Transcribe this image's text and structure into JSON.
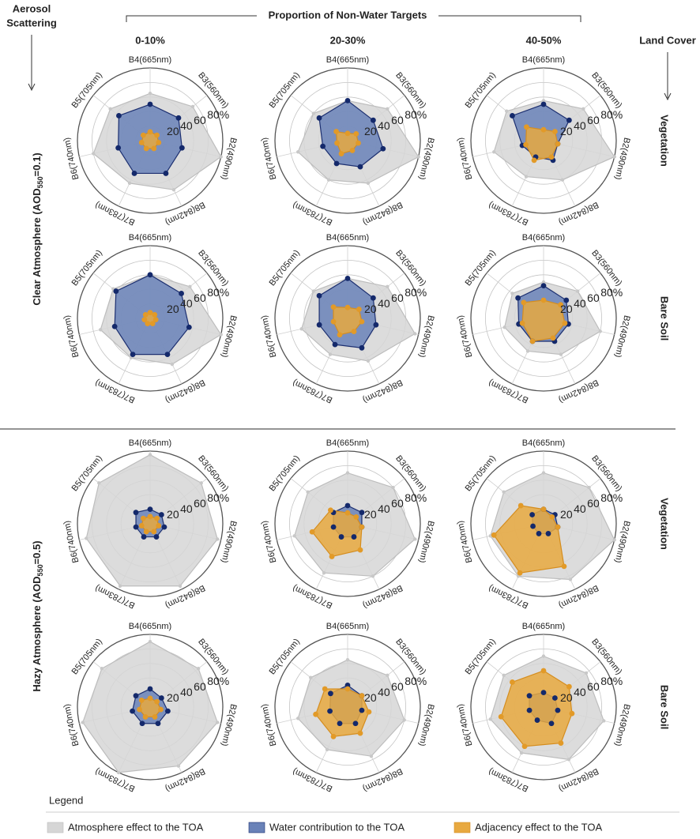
{
  "header": {
    "row_axis_title": [
      "Aerosol",
      "Scattering"
    ],
    "col_axis_title": "Proportion of Non-Water Targets",
    "right_axis_title": "Land Cover",
    "columns": [
      "0-10%",
      "20-30%",
      "40-50%"
    ]
  },
  "rows": [
    {
      "group": [
        "Clear Atmosphere (AOD",
        "550",
        "=0.1)"
      ],
      "land_covers": [
        "Vegetation",
        "Bare Soil"
      ]
    },
    {
      "group": [
        "Hazy Atmosphere (AOD",
        "550",
        "=0.5)"
      ],
      "land_covers": [
        "Vegetation",
        "Bare Soil"
      ]
    }
  ],
  "legend": {
    "title": "Legend",
    "items": [
      {
        "name": "Atmosphere effect to the TOA",
        "color": "#d6d6d6"
      },
      {
        "name": "Water contribution to the TOA",
        "color": "#6a82b8"
      },
      {
        "name": "Adjacency effect to the TOA",
        "color": "#e8a940"
      }
    ]
  },
  "chart_data": [
    {
      "type": "radar",
      "categories": [
        "B2(490nm)",
        "B3(560nm)",
        "B4(665nm)",
        "B5(705nm)",
        "B6(740nm)",
        "B7(783nm)",
        "B8(842nm)"
      ],
      "rlim": [
        0,
        100
      ],
      "rticks": [
        20,
        40,
        60,
        {
          "value": 80,
          "label": "80%"
        }
      ],
      "series": [
        {
          "values": [
            100,
            75,
            65,
            70,
            80,
            65,
            75
          ]
        },
        {
          "values": [
            45,
            50,
            50,
            55,
            45,
            50,
            50
          ]
        },
        {
          "values": [
            12,
            12,
            12,
            12,
            12,
            12,
            12
          ]
        }
      ]
    },
    {
      "type": "radar",
      "categories": [
        "B2(490nm)",
        "B3(560nm)",
        "B4(665nm)",
        "B5(705nm)",
        "B6(740nm)",
        "B7(783nm)",
        "B8(842nm)"
      ],
      "rlim": [
        0,
        100
      ],
      "rticks": [
        20,
        40,
        60,
        {
          "value": 80,
          "label": "80%"
        }
      ],
      "series": [
        {
          "values": [
            100,
            70,
            55,
            60,
            70,
            60,
            65
          ]
        },
        {
          "values": [
            50,
            45,
            55,
            50,
            35,
            35,
            40
          ]
        },
        {
          "values": [
            15,
            15,
            10,
            20,
            15,
            20,
            15
          ]
        }
      ]
    },
    {
      "type": "radar",
      "categories": [
        "B2(490nm)",
        "B3(560nm)",
        "B4(665nm)",
        "B5(705nm)",
        "B6(740nm)",
        "B7(783nm)",
        "B8(842nm)"
      ],
      "rlim": [
        0,
        100
      ],
      "rticks": [
        20,
        40,
        60,
        {
          "value": 80,
          "label": "80%"
        }
      ],
      "series": [
        {
          "values": [
            100,
            70,
            55,
            65,
            70,
            55,
            60
          ]
        },
        {
          "values": [
            20,
            45,
            50,
            55,
            30,
            25,
            30
          ]
        },
        {
          "values": [
            20,
            20,
            15,
            30,
            25,
            30,
            25
          ]
        }
      ]
    },
    {
      "type": "radar",
      "categories": [
        "B2(490nm)",
        "B3(560nm)",
        "B4(665nm)",
        "B5(705nm)",
        "B6(740nm)",
        "B7(783nm)",
        "B8(842nm)"
      ],
      "rlim": [
        0,
        100
      ],
      "rticks": [
        20,
        40,
        60,
        {
          "value": 80,
          "label": "80%"
        }
      ],
      "series": [
        {
          "values": [
            100,
            70,
            60,
            65,
            70,
            60,
            70
          ]
        },
        {
          "values": [
            55,
            55,
            60,
            60,
            50,
            55,
            55
          ]
        },
        {
          "values": [
            8,
            8,
            8,
            8,
            8,
            8,
            8
          ]
        }
      ]
    },
    {
      "type": "radar",
      "categories": [
        "B2(490nm)",
        "B3(560nm)",
        "B4(665nm)",
        "B5(705nm)",
        "B6(740nm)",
        "B7(783nm)",
        "B8(842nm)"
      ],
      "rlim": [
        0,
        100
      ],
      "rticks": [
        20,
        40,
        60,
        {
          "value": 80,
          "label": "80%"
        }
      ],
      "series": [
        {
          "values": [
            95,
            70,
            55,
            60,
            65,
            55,
            65
          ]
        },
        {
          "values": [
            40,
            45,
            55,
            50,
            40,
            40,
            45
          ]
        },
        {
          "values": [
            20,
            20,
            15,
            25,
            20,
            25,
            20
          ]
        }
      ]
    },
    {
      "type": "radar",
      "categories": [
        "B2(490nm)",
        "B3(560nm)",
        "B4(665nm)",
        "B5(705nm)",
        "B6(740nm)",
        "B7(783nm)",
        "B8(842nm)"
      ],
      "rlim": [
        0,
        100
      ],
      "rticks": [
        20,
        40,
        60,
        {
          "value": 80,
          "label": "80%"
        }
      ],
      "series": [
        {
          "values": [
            80,
            60,
            50,
            55,
            55,
            50,
            55
          ]
        },
        {
          "values": [
            35,
            40,
            45,
            45,
            35,
            35,
            35
          ]
        },
        {
          "values": [
            30,
            30,
            25,
            35,
            30,
            35,
            30
          ]
        }
      ]
    },
    {
      "type": "radar",
      "categories": [
        "B2(490nm)",
        "B3(560nm)",
        "B4(665nm)",
        "B5(705nm)",
        "B6(740nm)",
        "B7(783nm)",
        "B8(842nm)"
      ],
      "rlim": [
        0,
        100
      ],
      "rticks": [
        20,
        40,
        60,
        {
          "value": 80,
          "label": "80%"
        }
      ],
      "series": [
        {
          "values": [
            95,
            90,
            95,
            90,
            90,
            95,
            95
          ]
        },
        {
          "values": [
            20,
            20,
            20,
            25,
            20,
            20,
            20
          ]
        },
        {
          "values": [
            12,
            12,
            10,
            12,
            12,
            12,
            12
          ]
        }
      ]
    },
    {
      "type": "radar",
      "categories": [
        "B2(490nm)",
        "B3(560nm)",
        "B4(665nm)",
        "B5(705nm)",
        "B6(740nm)",
        "B7(783nm)",
        "B8(842nm)"
      ],
      "rlim": [
        0,
        100
      ],
      "rticks": [
        20,
        40,
        60,
        {
          "value": 80,
          "label": "80%"
        }
      ],
      "series": [
        {
          "values": [
            95,
            80,
            70,
            70,
            75,
            75,
            80
          ]
        },
        {
          "values": [
            20,
            25,
            25,
            25,
            20,
            20,
            20
          ]
        },
        {
          "values": [
            20,
            15,
            15,
            30,
            50,
            50,
            40
          ]
        }
      ]
    },
    {
      "type": "radar",
      "categories": [
        "B2(490nm)",
        "B3(560nm)",
        "B4(665nm)",
        "B5(705nm)",
        "B6(740nm)",
        "B7(783nm)",
        "B8(842nm)"
      ],
      "rlim": [
        0,
        100
      ],
      "rticks": [
        20,
        40,
        60,
        {
          "value": 80,
          "label": "80%"
        }
      ],
      "series": [
        {
          "values": [
            100,
            80,
            70,
            70,
            75,
            80,
            85
          ]
        },
        {
          "values": [
            20,
            20,
            20,
            20,
            15,
            15,
            15
          ]
        },
        {
          "values": [
            20,
            15,
            20,
            40,
            70,
            75,
            65
          ]
        }
      ]
    },
    {
      "type": "radar",
      "categories": [
        "B2(490nm)",
        "B3(560nm)",
        "B4(665nm)",
        "B5(705nm)",
        "B6(740nm)",
        "B7(783nm)",
        "B8(842nm)"
      ],
      "rlim": [
        0,
        100
      ],
      "rticks": [
        20,
        40,
        60,
        {
          "value": 80,
          "label": "80%"
        }
      ],
      "series": [
        {
          "values": [
            95,
            85,
            90,
            85,
            95,
            100,
            90
          ]
        },
        {
          "values": [
            25,
            20,
            25,
            25,
            25,
            25,
            25
          ]
        },
        {
          "values": [
            15,
            12,
            12,
            15,
            15,
            15,
            15
          ]
        }
      ]
    },
    {
      "type": "radar",
      "categories": [
        "B2(490nm)",
        "B3(560nm)",
        "B4(665nm)",
        "B5(705nm)",
        "B6(740nm)",
        "B7(783nm)",
        "B8(842nm)"
      ],
      "rlim": [
        0,
        100
      ],
      "rticks": [
        20,
        40,
        60,
        {
          "value": 80,
          "label": "80%"
        }
      ],
      "series": [
        {
          "values": [
            80,
            70,
            65,
            65,
            70,
            65,
            75
          ]
        },
        {
          "values": [
            20,
            25,
            30,
            30,
            25,
            25,
            25
          ]
        },
        {
          "values": [
            30,
            25,
            25,
            40,
            45,
            45,
            40
          ]
        }
      ]
    },
    {
      "type": "radar",
      "categories": [
        "B2(490nm)",
        "B3(560nm)",
        "B4(665nm)",
        "B5(705nm)",
        "B6(740nm)",
        "B7(783nm)",
        "B8(842nm)"
      ],
      "rlim": [
        0,
        100
      ],
      "rticks": [
        20,
        40,
        60,
        {
          "value": 80,
          "label": "80%"
        }
      ],
      "series": [
        {
          "values": [
            85,
            75,
            70,
            70,
            75,
            70,
            80
          ]
        },
        {
          "values": [
            20,
            20,
            20,
            25,
            20,
            20,
            25
          ]
        },
        {
          "values": [
            40,
            45,
            50,
            55,
            60,
            60,
            55
          ]
        }
      ]
    }
  ]
}
